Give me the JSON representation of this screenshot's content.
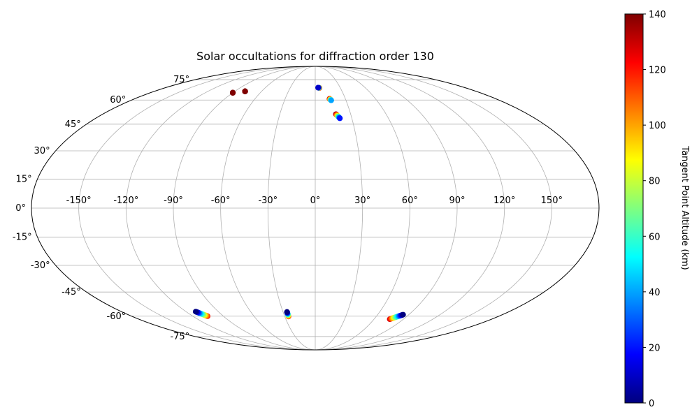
{
  "chart_data": {
    "type": "scatter",
    "projection": "mollweide",
    "title": "Solar occultations for diffraction order 130",
    "grid": true,
    "lon_ticks": [
      -150,
      -120,
      -90,
      -60,
      -30,
      0,
      30,
      60,
      90,
      120,
      150
    ],
    "lon_tick_labels": [
      "-150°",
      "-120°",
      "-90°",
      "-60°",
      "-30°",
      "0°",
      "30°",
      "60°",
      "90°",
      "120°",
      "150°"
    ],
    "lat_ticks": [
      -75,
      -60,
      -45,
      -30,
      -15,
      0,
      15,
      30,
      45,
      60,
      75
    ],
    "lat_tick_labels": [
      "-75°",
      "-60°",
      "-45°",
      "-30°",
      "-15°",
      "0°",
      "15°",
      "30°",
      "45°",
      "60°",
      "75°"
    ],
    "colorbar": {
      "label": "Tangent Point Altitude (km)",
      "colormap": "jet",
      "range": [
        0,
        140
      ],
      "ticks": [
        0,
        20,
        40,
        60,
        80,
        100,
        120,
        140
      ],
      "tick_labels": [
        "0",
        "20",
        "40",
        "60",
        "80",
        "100",
        "120",
        "140"
      ]
    },
    "tracks": [
      {
        "lon_start": 5.0,
        "lat_start": 68.5,
        "lon_end": 3.5,
        "lat_end": 68.7,
        "alt_start": 140,
        "alt_end": 10
      },
      {
        "lon_start": 14.2,
        "lat_start": 60.8,
        "lon_end": 15.6,
        "lat_end": 59.8,
        "alt_start": 140,
        "alt_end": 40
      },
      {
        "lon_start": 17.5,
        "lat_start": 51.0,
        "lon_end": 20.2,
        "lat_end": 48.5,
        "alt_start": 140,
        "alt_end": 20
      },
      {
        "lon_start": -90.0,
        "lat_start": 65.0,
        "lon_end": -90.0,
        "lat_end": 65.0,
        "alt_start": 140,
        "alt_end": 140
      },
      {
        "lon_start": -78.5,
        "lat_start": 66.0,
        "lon_end": -78.5,
        "lat_end": 66.0,
        "alt_start": 140,
        "alt_end": 140
      },
      {
        "lon_start": -105.5,
        "lat_start": -60.0,
        "lon_end": -111.0,
        "lat_end": -57.0,
        "alt_start": 120,
        "alt_end": 0
      },
      {
        "lon_start": -26.3,
        "lat_start": -60.2,
        "lon_end": -26.3,
        "lat_end": -57.2,
        "alt_start": 120,
        "alt_end": 0
      },
      {
        "lon_start": 76.0,
        "lat_start": -62.0,
        "lon_end": 84.5,
        "lat_end": -59.0,
        "alt_start": 130,
        "alt_end": 0
      }
    ]
  }
}
